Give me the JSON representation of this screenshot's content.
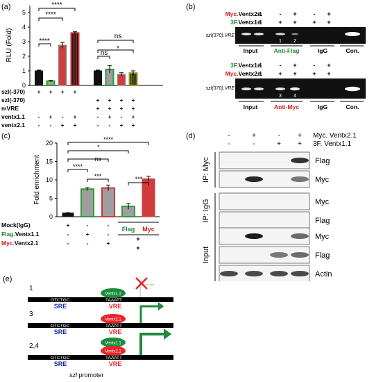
{
  "panels": {
    "a": {
      "letter": "(a)",
      "ylabel": "RLU (Fold)",
      "yticks": [
        "0",
        "1",
        "2",
        "3",
        "4",
        "5"
      ],
      "sig": [
        "****",
        "****",
        "****",
        "ns",
        "ns",
        "*"
      ],
      "row_labels": [
        "szl(-370)",
        "szl(-370)",
        "mVRE",
        "ventx1.1",
        "ventx2.1"
      ],
      "rows": [
        [
          "+",
          "+",
          "+",
          "+",
          "",
          "",
          "",
          ""
        ],
        [
          "",
          "",
          "",
          "",
          "+",
          "+",
          "+",
          "+"
        ],
        [
          "",
          "",
          "",
          "",
          "+",
          "+",
          "+",
          "+"
        ],
        [
          "-",
          "+",
          "-",
          "+",
          "-",
          "+",
          "-",
          "+"
        ],
        [
          "-",
          "-",
          "+",
          "+",
          "-",
          "-",
          "+",
          "+"
        ]
      ],
      "chart_data": {
        "type": "bar",
        "categories": [
          "1",
          "2",
          "3",
          "4",
          "5",
          "6",
          "7",
          "8"
        ],
        "values": [
          1.0,
          0.3,
          2.75,
          3.6,
          1.0,
          1.1,
          0.75,
          0.85
        ],
        "errors": [
          0.05,
          0.05,
          0.2,
          0.08,
          0.05,
          0.25,
          0.12,
          0.15
        ],
        "ylabel": "RLU (Fold)",
        "ylim": [
          0,
          5
        ]
      }
    },
    "b": {
      "letter": "(b)",
      "top": {
        "row1_label_colored": "Myc.",
        "row1_label_rest": "Ventx2.1",
        "row1_signs": [
          "-",
          "+",
          "-",
          "+",
          "-",
          "+"
        ],
        "row2_label_colored": "3F.",
        "row2_label_rest": "Ventx1.1",
        "row2_signs": [
          "+",
          "+",
          "+",
          "+",
          "+",
          "+"
        ],
        "gel_label": "szl(370).VRE",
        "lane_numbers": [
          "1",
          "2"
        ],
        "groups": [
          "Input",
          "Anti-Flag",
          "IgG",
          "Con."
        ]
      },
      "bottom": {
        "row1_label_colored": "3F.",
        "row1_label_rest": "Ventx1.1",
        "row1_signs": [
          "-",
          "+",
          "-",
          "+",
          "-",
          "+"
        ],
        "row2_label_colored": "Myc.",
        "row2_label_rest": "Ventx2.1",
        "row2_signs": [
          "+",
          "+",
          "+",
          "+",
          "+",
          "+"
        ],
        "gel_label": "szl(370).VRE",
        "lane_numbers": [
          "3",
          "4"
        ],
        "groups": [
          "Input",
          "Anti-Myc",
          "IgG",
          "Con."
        ]
      }
    },
    "c": {
      "letter": "(c)",
      "ylabel": "Fold enrichment",
      "yticks": [
        "0",
        "5",
        "10",
        "15",
        "20"
      ],
      "sig": [
        "****",
        "*",
        "****",
        "ns",
        "***",
        "***"
      ],
      "row_labels": [
        "Mock(IgG)",
        "Flag.Ventx1.1",
        "Myc.Ventx2.1"
      ],
      "row_label_colored": [
        "",
        "Flag.",
        "Myc."
      ],
      "row_label_rest": [
        "Mock(IgG)",
        "Ventx1.1",
        "Ventx2.1"
      ],
      "rows": [
        [
          "+",
          "-",
          "-"
        ],
        [
          "-",
          "+",
          "-"
        ],
        [
          "-",
          "-",
          "+"
        ]
      ],
      "group_labels": [
        "Flag",
        "Myc"
      ],
      "group_signs": [
        "+",
        "+"
      ],
      "chart_data": {
        "type": "bar",
        "categories": [
          "Mock",
          "Flag.Ventx1.1",
          "Myc.Ventx2.1",
          "Flag",
          "Myc"
        ],
        "values": [
          1.0,
          7.5,
          7.8,
          2.8,
          10.3
        ],
        "errors": [
          0.1,
          0.4,
          0.8,
          0.8,
          0.7
        ],
        "ylabel": "Fold enrichment",
        "ylim": [
          0,
          20
        ]
      }
    },
    "d": {
      "letter": "(d)",
      "header_rows": [
        {
          "signs": [
            "-",
            "+",
            "-",
            "+"
          ],
          "label": "Myc. Ventx2.1"
        },
        {
          "signs": [
            "-",
            "-",
            "+",
            "+"
          ],
          "label": "3F. Ventx1.1"
        }
      ],
      "sections": [
        {
          "label": "IP: Myc",
          "bands": [
            "Flag",
            "Myc"
          ]
        },
        {
          "label": "IP: IgG",
          "bands": [
            "Myc",
            "Flag"
          ]
        },
        {
          "label": "Input",
          "bands": [
            "Myc",
            "Flag",
            "Actin"
          ]
        }
      ]
    },
    "e": {
      "letter": "(e)",
      "rows": [
        {
          "num": "1",
          "proteins": [
            "Ventx1.1"
          ]
        },
        {
          "num": "3",
          "proteins": [
            "Ventx2.1"
          ]
        },
        {
          "num": "2,4",
          "proteins": [
            "Ventx1.1",
            "Ventx2.1"
          ]
        }
      ],
      "seq_left": "GTCTGC",
      "seq_right": "TAAATT",
      "sre": "SRE",
      "vre": "VRE",
      "promoter_italic": "szl",
      "promoter_rest": " promoter",
      "colors": {
        "green": "#1e8a3c",
        "red": "#e8262a",
        "blue": "#1a2aa8"
      }
    }
  },
  "colors": {
    "bar_black": "#111111",
    "bar_gray": "#9e9e9e",
    "bar_red": "#d23b3b",
    "bar_green_edge": "#2e9a3a",
    "bar_red_edge": "#d43535",
    "bar_olive_edge": "#9aa02a",
    "label_red": "#d7191c",
    "label_green": "#1b8a2e"
  }
}
